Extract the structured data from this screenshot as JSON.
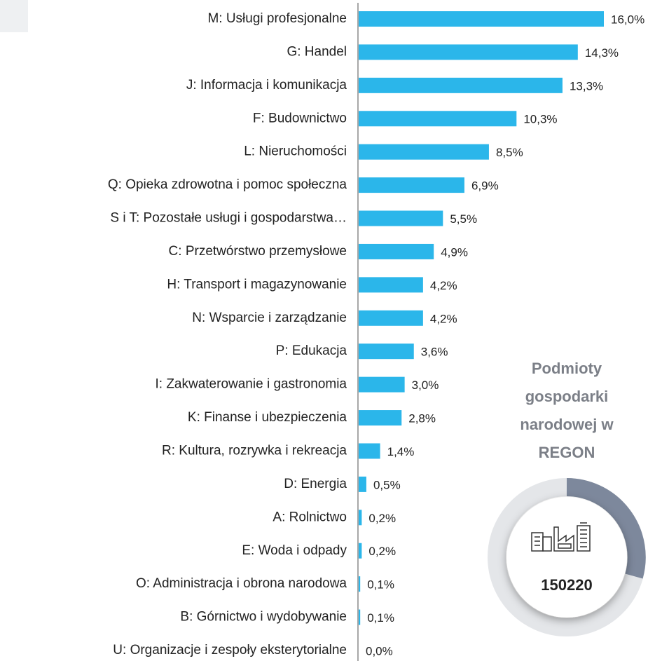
{
  "chart_data": {
    "type": "bar",
    "orientation": "horizontal",
    "color": "#2bb6ea",
    "categories": [
      "M: Usługi profesjonalne",
      "G: Handel",
      "J: Informacja i komunikacja",
      "F: Budownictwo",
      "L: Nieruchomości",
      "Q: Opieka zdrowotna i pomoc społeczna",
      "S i T: Pozostałe usługi i gospodarstwa…",
      "C: Przetwórstwo przemysłowe",
      "H: Transport i magazynowanie",
      "N: Wsparcie i zarządzanie",
      "P: Edukacja",
      "I: Zakwaterowanie i gastronomia",
      "K: Finanse i ubezpieczenia",
      "R: Kultura, rozrywka i rekreacja",
      "D: Energia",
      "A: Rolnictwo",
      "E: Woda i odpady",
      "O: Administracja i obrona narodowa",
      "B: Górnictwo i wydobywanie",
      "U: Organizacje i zespoły eksterytorialne"
    ],
    "values": [
      16.0,
      14.3,
      13.3,
      10.3,
      8.5,
      6.9,
      5.5,
      4.9,
      4.2,
      4.2,
      3.6,
      3.0,
      2.8,
      1.4,
      0.5,
      0.2,
      0.2,
      0.1,
      0.1,
      0.0
    ],
    "value_labels": [
      "16,0%",
      "14,3%",
      "13,3%",
      "10,3%",
      "8,5%",
      "6,9%",
      "5,5%",
      "4,9%",
      "4,2%",
      "4,2%",
      "3,6%",
      "3,0%",
      "2,8%",
      "1,4%",
      "0,5%",
      "0,2%",
      "0,2%",
      "0,1%",
      "0,1%",
      "0,0%"
    ],
    "annotations": [
      "Podmioty gospodarki narodowej w REGON",
      "150220"
    ]
  }
}
